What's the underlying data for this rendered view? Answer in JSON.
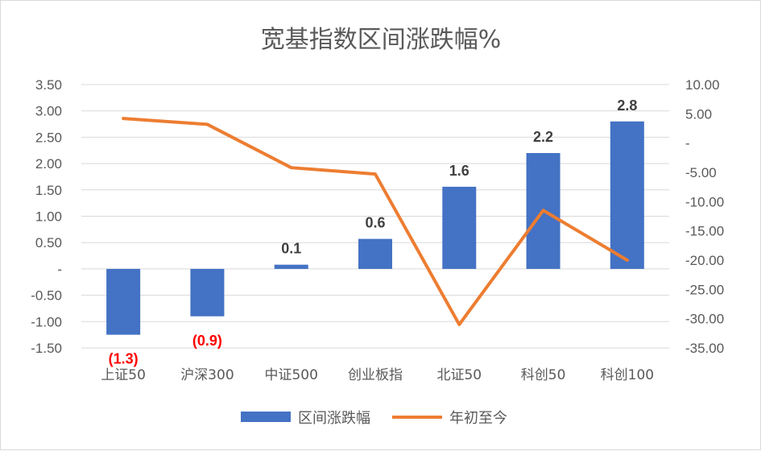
{
  "chart_data": {
    "type": "bar",
    "title": "宽基指数区间涨跌幅%",
    "categories": [
      "上证50",
      "沪深300",
      "中证500",
      "创业板指",
      "北证50",
      "科创50",
      "科创100"
    ],
    "series": [
      {
        "name": "区间涨跌幅",
        "type": "bar",
        "axis": "left",
        "color": "#4472C4",
        "values": [
          -1.25,
          -0.9,
          0.08,
          0.57,
          1.56,
          2.2,
          2.8
        ],
        "labels": [
          "(1.3)",
          "(0.9)",
          "0.1",
          "0.6",
          "1.6",
          "2.2",
          "2.8"
        ],
        "label_colors": [
          "#FF0000",
          "#FF0000",
          "#404040",
          "#404040",
          "#404040",
          "#404040",
          "#404040"
        ]
      },
      {
        "name": "年初至今",
        "type": "line",
        "axis": "right",
        "color": "#ED7D31",
        "values": [
          4.2,
          3.2,
          -4.2,
          -5.3,
          -31.0,
          -11.5,
          -20.0
        ]
      }
    ],
    "y_left": {
      "ylim": [
        -1.5,
        3.5
      ],
      "ticks": [
        3.5,
        3.0,
        2.5,
        2.0,
        1.5,
        1.0,
        0.5,
        0,
        -0.5,
        -1.0,
        -1.5
      ],
      "tick_labels": [
        "3.50",
        "3.00",
        "2.50",
        "2.00",
        "1.50",
        "1.00",
        "0.50",
        "-",
        "-0.50",
        "-1.00",
        "-1.50"
      ]
    },
    "y_right": {
      "ylim": [
        -35,
        10
      ],
      "ticks": [
        10,
        5,
        0,
        -5,
        -10,
        -15,
        -20,
        -25,
        -30,
        -35
      ],
      "tick_labels": [
        "10.00",
        "5.00",
        "-",
        "-5.00",
        "-10.00",
        "-15.00",
        "-20.00",
        "-25.00",
        "-30.00",
        "-35.00"
      ]
    },
    "grid": true,
    "legend_position": "bottom"
  }
}
